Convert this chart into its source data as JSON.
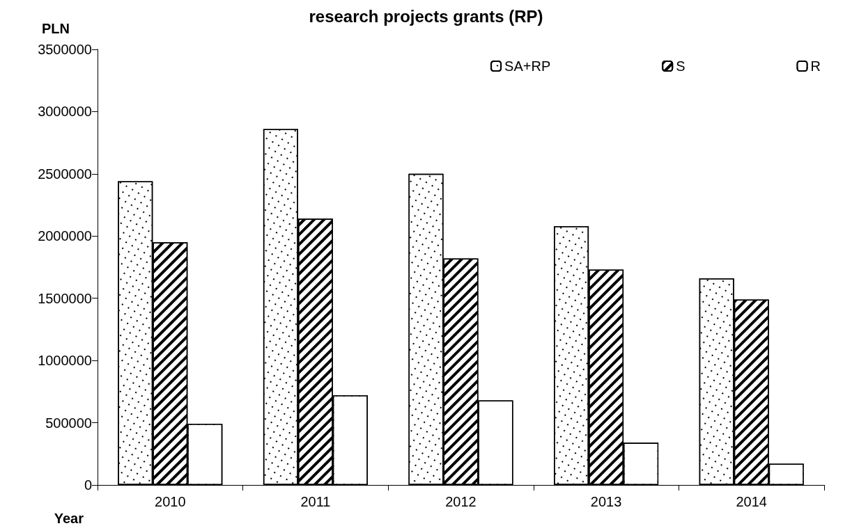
{
  "chart_data": {
    "type": "bar",
    "title": "research projects grants (RP)",
    "xlabel": "Year",
    "ylabel": "PLN",
    "categories": [
      "2010",
      "2011",
      "2012",
      "2013",
      "2014"
    ],
    "series": [
      {
        "name": "SA+RP",
        "color": "#ffffff",
        "values": [
          2440000,
          2860000,
          2500000,
          2080000,
          1660000
        ]
      },
      {
        "name": "S",
        "color": "#ffffff",
        "values": [
          1950000,
          2140000,
          1820000,
          1730000,
          1490000
        ]
      },
      {
        "name": "R",
        "color": "#ffffff",
        "values": [
          490000,
          720000,
          680000,
          340000,
          170000
        ]
      }
    ],
    "ylim": [
      0,
      3500000
    ],
    "yticks": [
      0,
      500000,
      1000000,
      1500000,
      2000000,
      2500000,
      3000000,
      3500000
    ],
    "grid": false,
    "legend": "top right"
  }
}
